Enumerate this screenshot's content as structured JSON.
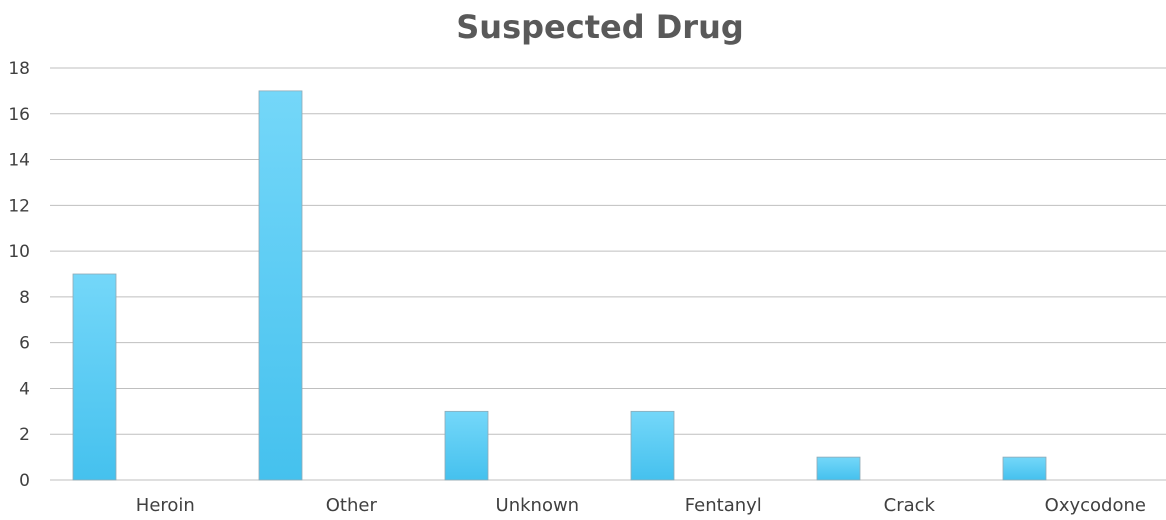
{
  "chart_data": {
    "type": "bar",
    "title": "Suspected Drug",
    "categories": [
      "Heroin",
      "Other",
      "Unknown",
      "Fentanyl",
      "Crack",
      "Oxycodone"
    ],
    "values": [
      9,
      17,
      3,
      3,
      1,
      1
    ],
    "ylim": [
      0,
      18
    ],
    "yticks": [
      0,
      2,
      4,
      6,
      8,
      10,
      12,
      14,
      16,
      18
    ],
    "grid": true,
    "legend": "none",
    "colors": {
      "bar_top": "#74d7f9",
      "bar_bottom": "#45c1ee",
      "grid": "#bfbfbf",
      "text": "#404040"
    }
  }
}
